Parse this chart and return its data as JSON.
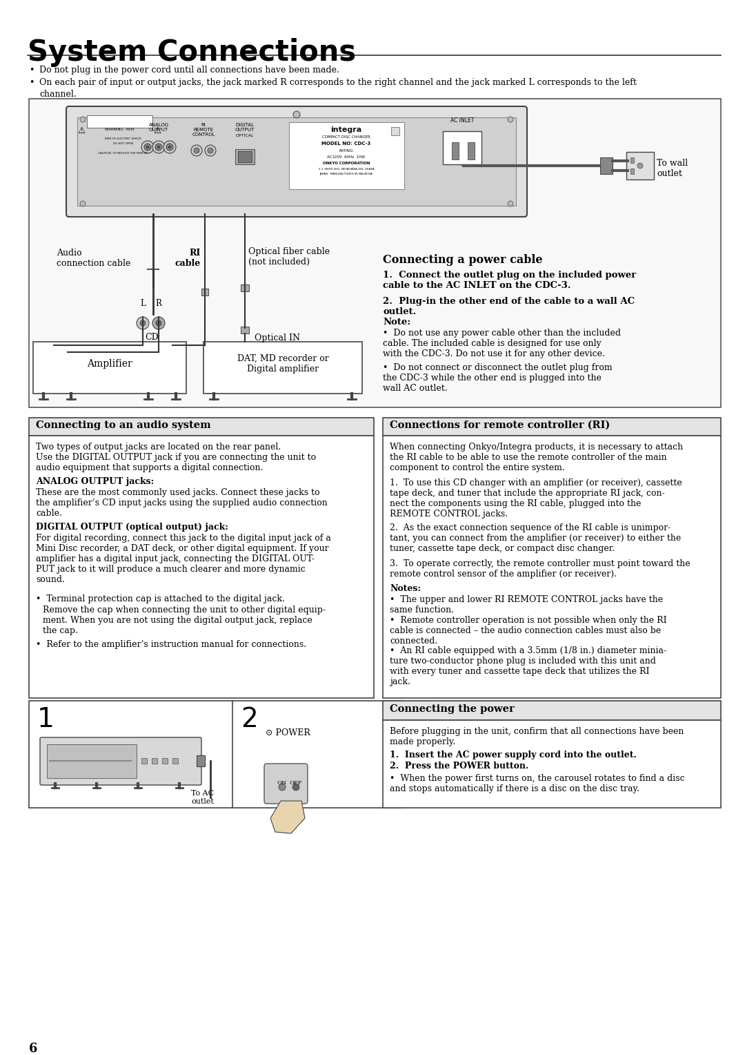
{
  "title": "System Connections",
  "bg_color": "#ffffff",
  "bullet1": "Do not plug in the power cord until all connections have been made.",
  "bullet2": "On each pair of input or output jacks, the jack marked R corresponds to the right channel and the jack marked L corresponds to the left",
  "bullet2b": "channel.",
  "section_connecting_power_title": "Connecting a power cable",
  "section_power_step1": "Connect the outlet plug on the included power\ncable to the AC INLET on the CDC-3.",
  "section_power_step2": "Plug-in the other end of the cable to a wall AC\noutlet.",
  "power_note_title": "Note:",
  "power_note1": "Do not use any power cable other than the included\ncable. The included cable is designed for use only\nwith the CDC-3. Do not use it for any other device.",
  "power_note2": "Do not connect or disconnect the outlet plug from\nthe CDC-3 while the other end is plugged into the\nwall AC outlet.",
  "section_audio_title": "Connecting to an audio system",
  "audio_para1": "Two types of output jacks are located on the rear panel.\nUse the DIGITAL OUTPUT jack if you are connecting the unit to\naudio equipment that supports a digital connection.",
  "audio_analog_title": "ANALOG OUTPUT jacks:",
  "audio_analog_text": "These are the most commonly used jacks. Connect these jacks to\nthe amplifier’s CD input jacks using the supplied audio connection\ncable.",
  "audio_digital_title": "DIGITAL OUTPUT (optical output) jack:",
  "audio_digital_text": "For digital recording, connect this jack to the digital input jack of a\nMini Disc recorder, a DAT deck, or other digital equipment. If your\namplifier has a digital input jack, connecting the DIGITAL OUT-\nPUT jack to it will produce a much clearer and more dynamic\nsound.",
  "audio_bullet1a": "Terminal protection cap is attached to the digital jack.",
  "audio_bullet1b": "Remove the cap when connecting the unit to other digital equip-\nment. When you are not using the digital output jack, replace\nthe cap.",
  "audio_bullet2": "Refer to the amplifier’s instruction manual for connections.",
  "section_remote_title": "Connections for remote controller (RI)",
  "remote_para1": "When connecting Onkyo/Integra products, it is necessary to attach\nthe RI cable to be able to use the remote controller of the main\ncomponent to control the entire system.",
  "remote_item1": "To use this CD changer with an amplifier (or receiver), cassette\ntape deck, and tuner that include the appropriate RI jack, con-\nnect the components using the RI cable, plugged into the\nREMOTE CONTROL jacks.",
  "remote_item2": "As the exact connection sequence of the RI cable is unimpor-\ntant, you can connect from the amplifier (or receiver) to either the\ntuner, cassette tape deck, or compact disc changer.",
  "remote_item3": "To operate correctly, the remote controller must point toward the\nremote control sensor of the amplifier (or receiver).",
  "remote_notes_title": "Notes:",
  "remote_note1": "The upper and lower RI REMOTE CONTROL jacks have the\nsame function.",
  "remote_note2": "Remote controller operation is not possible when only the RI\ncable is connected – the audio connection cables must also be\nconnected.",
  "remote_note3": "An RI cable equipped with a 3.5mm (1/8 in.) diameter minia-\nture two-conductor phone plug is included with this unit and\nwith every tuner and cassette tape deck that utilizes the RI\njack.",
  "section_connect_power_title": "Connecting the power",
  "connect_power_intro": "Before plugging in the unit, confirm that all connections have been\nmade properly.",
  "connect_power_step1": "Insert the AC power supply cord into the outlet.",
  "connect_power_step2": "Press the POWER button.",
  "connect_power_note": "When the power first turns on, the carousel rotates to find a disc\nand stops automatically if there is a disc on the disc tray.",
  "page_number": "6",
  "label_audio_cable": "Audio\nconnection cable",
  "label_ri_cable": "RI\ncable",
  "label_optical_cable": "Optical fiber cable\n(not included)",
  "label_to_wall": "To wall\noutlet",
  "label_optical_in": "Optical IN",
  "label_amplifier": "Amplifier",
  "label_dat": "DAT, MD recorder or\nDigital amplifier",
  "label_cd": "CD",
  "label_L": "L",
  "label_R": "R",
  "label_ac_inlet": "AC INLET"
}
